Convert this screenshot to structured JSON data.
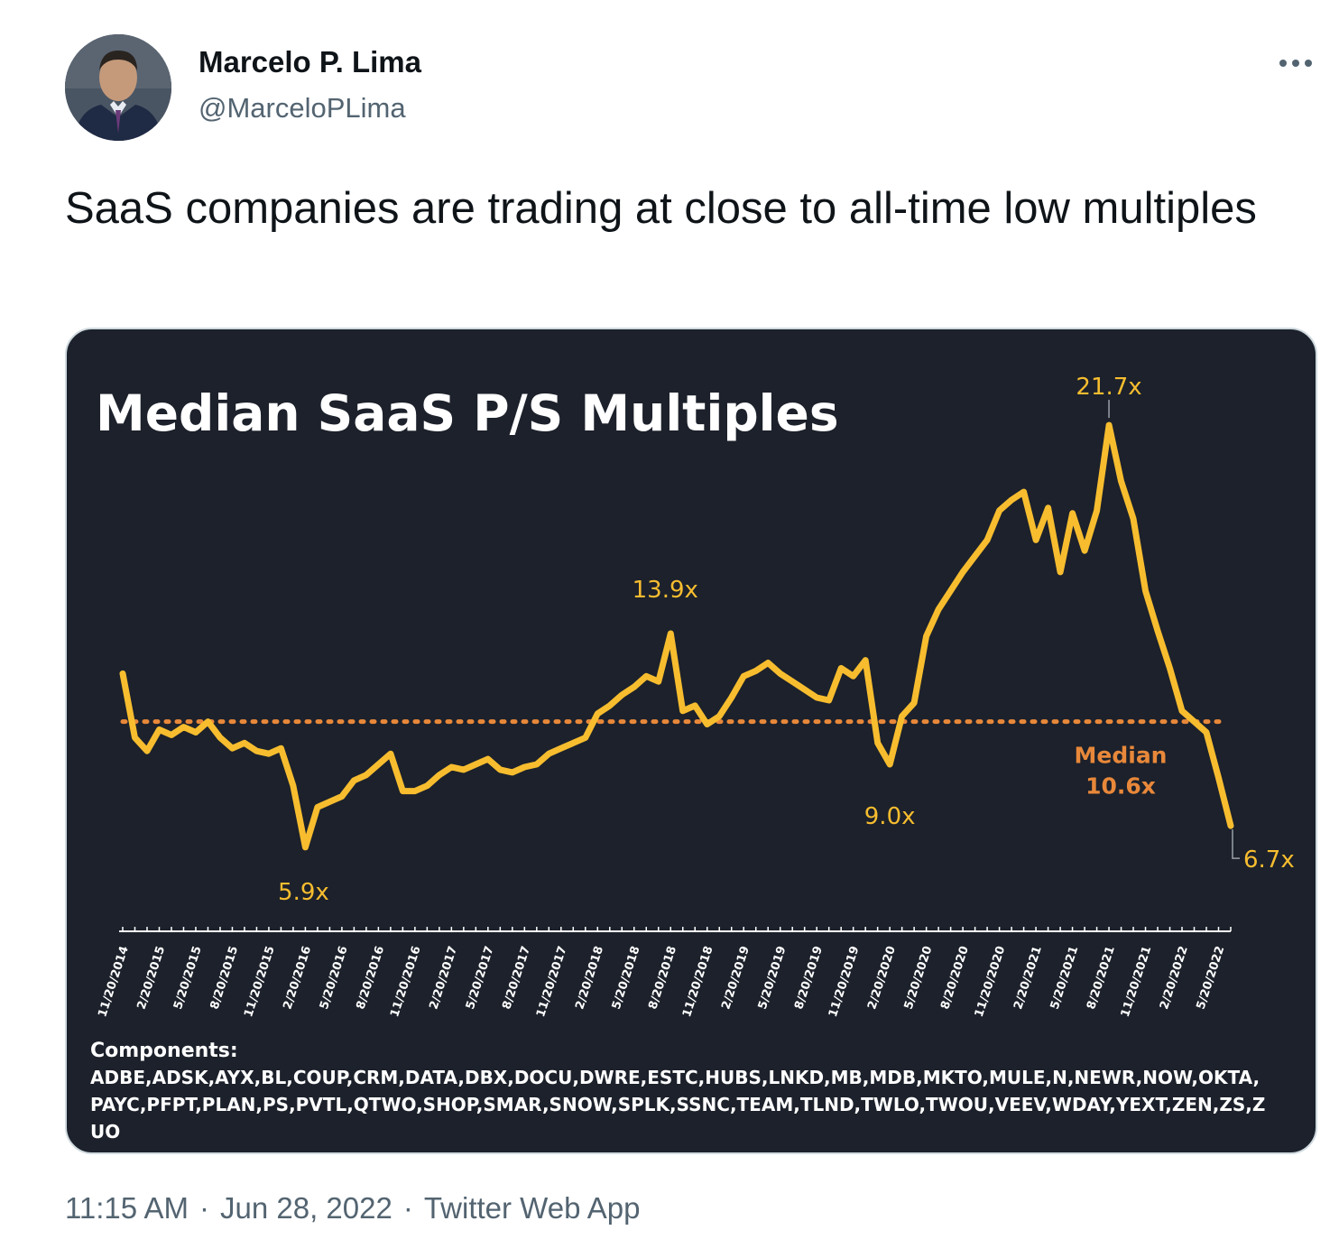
{
  "tweet": {
    "author_name": "Marcelo P. Lima",
    "author_handle": "@MarceloPLima",
    "text": "SaaS companies are trading at close to all-time low multiples",
    "time": "11:15 AM",
    "date": "Jun 28, 2022",
    "source": "Twitter Web App",
    "more_icon": "more-horizontal-icon"
  },
  "colors": {
    "chart_bg": "#1c212b",
    "series": "#f7bd2f",
    "median": "#e8883a",
    "text_muted": "#536471"
  },
  "chart_data": {
    "type": "line",
    "title": "Median SaaS P/S Multiples",
    "xlabel": "",
    "ylabel": "",
    "ylim": [
      4,
      24
    ],
    "x_ticks": [
      "11/20/2014",
      "2/20/2015",
      "5/20/2015",
      "8/20/2015",
      "11/20/2015",
      "2/20/2016",
      "5/20/2016",
      "8/20/2016",
      "11/20/2016",
      "2/20/2017",
      "5/20/2017",
      "8/20/2017",
      "11/20/2017",
      "2/20/2018",
      "5/20/2018",
      "8/20/2018",
      "11/20/2018",
      "2/20/2019",
      "5/20/2019",
      "8/20/2019",
      "11/20/2019",
      "2/20/2020",
      "5/20/2020",
      "8/20/2020",
      "11/20/2020",
      "2/20/2021",
      "5/20/2021",
      "8/20/2021",
      "11/20/2021",
      "2/20/2022",
      "5/20/2022"
    ],
    "series": [
      {
        "x": [
          "11/20/2014",
          "12/20/2014",
          "1/20/2015",
          "2/20/2015",
          "3/20/2015",
          "4/20/2015",
          "5/20/2015",
          "6/20/2015",
          "7/20/2015",
          "8/20/2015",
          "9/20/2015",
          "10/20/2015",
          "11/20/2015",
          "12/20/2015",
          "1/20/2016",
          "2/20/2016",
          "3/20/2016",
          "4/20/2016",
          "5/20/2016",
          "6/20/2016",
          "7/20/2016",
          "8/20/2016",
          "9/20/2016",
          "10/20/2016",
          "11/20/2016",
          "12/20/2016",
          "1/20/2017",
          "2/20/2017",
          "3/20/2017",
          "4/20/2017",
          "5/20/2017",
          "6/20/2017",
          "7/20/2017",
          "8/20/2017",
          "9/20/2017",
          "10/20/2017",
          "11/20/2017",
          "12/20/2017",
          "1/20/2018",
          "2/20/2018",
          "3/20/2018",
          "4/20/2018",
          "5/20/2018",
          "6/20/2018",
          "7/20/2018",
          "8/20/2018",
          "9/20/2018",
          "10/20/2018",
          "11/20/2018",
          "12/20/2018",
          "1/20/2019",
          "2/20/2019",
          "3/20/2019",
          "4/20/2019",
          "5/20/2019",
          "6/20/2019",
          "7/20/2019",
          "8/20/2019",
          "9/20/2019",
          "10/20/2019",
          "11/20/2019",
          "12/20/2019",
          "1/20/2020",
          "2/20/2020",
          "3/20/2020",
          "4/20/2020",
          "5/20/2020",
          "6/20/2020",
          "7/20/2020",
          "8/20/2020",
          "9/20/2020",
          "10/20/2020",
          "11/20/2020",
          "12/20/2020",
          "1/20/2021",
          "2/20/2021",
          "3/20/2021",
          "4/20/2021",
          "5/20/2021",
          "6/20/2021",
          "7/20/2021",
          "8/20/2021",
          "9/20/2021",
          "10/20/2021",
          "11/20/2021",
          "12/20/2021",
          "1/20/2022",
          "2/20/2022",
          "3/20/2022",
          "4/20/2022",
          "5/20/2022",
          "6/20/2022"
        ],
        "values": [
          12.4,
          10.0,
          9.5,
          10.3,
          10.1,
          10.4,
          10.2,
          10.6,
          10.0,
          9.6,
          9.8,
          9.5,
          9.4,
          9.6,
          8.2,
          5.9,
          7.4,
          7.6,
          7.8,
          8.4,
          8.6,
          9.0,
          9.4,
          8.0,
          8.0,
          8.2,
          8.6,
          8.9,
          8.8,
          9.0,
          9.2,
          8.8,
          8.7,
          8.9,
          9.0,
          9.4,
          9.6,
          9.8,
          10.0,
          10.9,
          11.2,
          11.6,
          11.9,
          12.3,
          12.1,
          13.9,
          11.0,
          11.2,
          10.5,
          10.8,
          11.5,
          12.3,
          12.5,
          12.8,
          12.4,
          12.1,
          11.8,
          11.5,
          11.4,
          12.6,
          12.3,
          12.9,
          9.8,
          9.0,
          10.8,
          11.3,
          13.8,
          14.8,
          15.5,
          16.2,
          16.8,
          17.4,
          18.5,
          18.9,
          19.2,
          17.4,
          18.6,
          16.2,
          18.4,
          17.0,
          18.5,
          21.7,
          19.6,
          18.2,
          15.5,
          14.0,
          12.6,
          11.0,
          10.6,
          10.2,
          8.5,
          6.7
        ]
      }
    ],
    "median": {
      "value": 10.6,
      "label_1": "Median",
      "label_2": "10.6x"
    },
    "annotations": [
      {
        "x": "2/20/2016",
        "y": 5.9,
        "text": "5.9x"
      },
      {
        "x": "8/20/2018",
        "y": 13.9,
        "text": "13.9x"
      },
      {
        "x": "2/20/2020",
        "y": 9.0,
        "text": "9.0x"
      },
      {
        "x": "8/20/2021",
        "y": 21.7,
        "text": "21.7x"
      },
      {
        "x": "6/20/2022",
        "y": 6.7,
        "text": "6.7x"
      }
    ],
    "components_label": "Components:",
    "components_line_1": "ADBE,ADSK,AYX,BL,COUP,CRM,DATA,DBX,DOCU,DWRE,ESTC,HUBS,LNKD,MB,MDB,MKTO,MULE,N,NEWR,NOW,OKTA,",
    "components_line_2": "PAYC,PFPT,PLAN,PS,PVTL,QTWO,SHOP,SMAR,SNOW,SPLK,SSNC,TEAM,TLND,TWLO,TWOU,VEEV,WDAY,YEXT,ZEN,ZS,Z",
    "components_line_3": "UO",
    "grid": false,
    "legend": "none"
  }
}
